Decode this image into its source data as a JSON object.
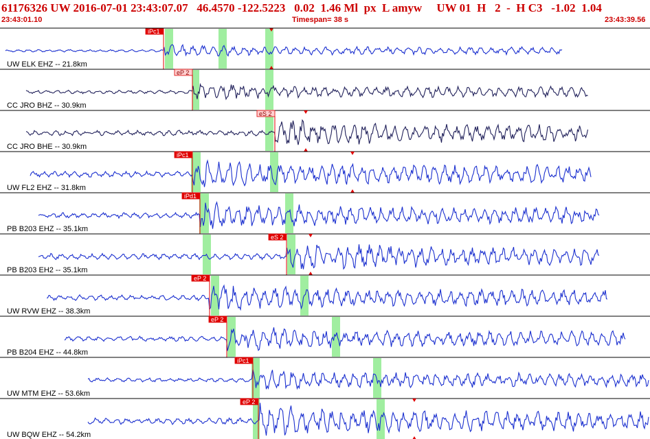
{
  "header": {
    "line": "61176326 UW 2016-07-01 23:43:07.07   46.4570 -122.5223   0.02  1.46 Ml  px  L amyw     UW 01  H   2  -  H C3   -1.02  1.04",
    "start_time": "23:43:01.10",
    "timespan": "Timespan=  38 s",
    "end_time": "23:43:39.56"
  },
  "colors": {
    "trace": "#1a2fcf",
    "trace_alt": "#20205a",
    "pick": "#e00000",
    "pick_window": "#a0eea0",
    "header": "#cc0000"
  },
  "traces": [
    {
      "label": "UW ELK EHZ -- 21.8km",
      "pick": "iPc1"
    },
    {
      "label": "CC JRO BHZ -- 30.9km",
      "pick": "eP 2"
    },
    {
      "label": "CC JRO BHE -- 30.9km",
      "pick": "eS 2"
    },
    {
      "label": "UW FL2 EHZ -- 31.8km",
      "pick": "iPc1"
    },
    {
      "label": "PB B203 EHZ -- 35.1km",
      "pick": "iPd1"
    },
    {
      "label": "PB B203 EH2 -- 35.1km",
      "pick": "eS 2"
    },
    {
      "label": "UW RVW EHZ -- 38.3km",
      "pick": "eP 2"
    },
    {
      "label": "PB B204 EHZ -- 44.8km",
      "pick": "eP 2"
    },
    {
      "label": "UW MTM EHZ -- 53.6km",
      "pick": "iPc1"
    },
    {
      "label": "UW BQW EHZ -- 54.2km",
      "pick": "eP 2"
    }
  ]
}
